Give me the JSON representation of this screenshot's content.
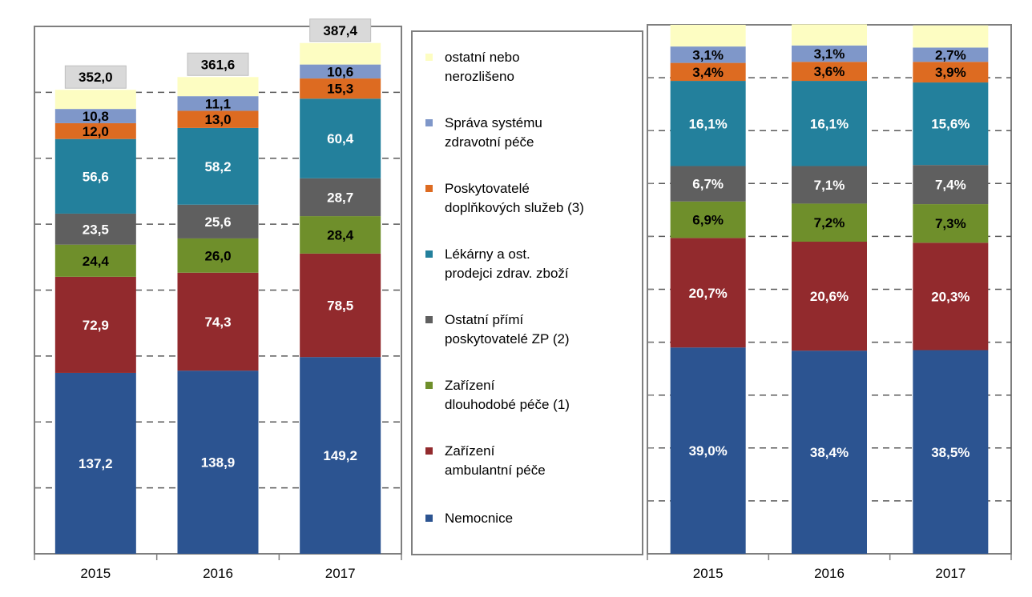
{
  "chart_data": [
    {
      "type": "bar",
      "stacked": true,
      "categories": [
        "2015",
        "2016",
        "2017"
      ],
      "ylim": [
        0,
        400
      ],
      "grid": true,
      "totals": [
        "352,0",
        "361,6",
        "387,4"
      ],
      "series": [
        {
          "name": "Nemocnice",
          "color": "#2c5491",
          "values": [
            137.2,
            138.9,
            149.2
          ],
          "labels": [
            "137,2",
            "138,9",
            "149,2"
          ],
          "label_color": "#ffffff"
        },
        {
          "name": "Zařízení ambulantní péče",
          "color": "#922a2d",
          "values": [
            72.9,
            74.3,
            78.5
          ],
          "labels": [
            "72,9",
            "74,3",
            "78,5"
          ],
          "label_color": "#ffffff"
        },
        {
          "name": "Zařízení dlouhodobé péče (1)",
          "color": "#6f8f2b",
          "values": [
            24.4,
            26.0,
            28.4
          ],
          "labels": [
            "24,4",
            "26,0",
            "28,4"
          ],
          "label_color": "#000000"
        },
        {
          "name": "Ostatní přímí poskytovatelé ZP (2)",
          "color": "#5f5f5f",
          "values": [
            23.5,
            25.6,
            28.7
          ],
          "labels": [
            "23,5",
            "25,6",
            "28,7"
          ],
          "label_color": "#ffffff"
        },
        {
          "name": "Lékárny a ost. prodejci zdrav. zboží",
          "color": "#23809c",
          "values": [
            56.6,
            58.2,
            60.4
          ],
          "labels": [
            "56,6",
            "58,2",
            "60,4"
          ],
          "label_color": "#ffffff"
        },
        {
          "name": "Poskytovatelé doplňkových služeb (3)",
          "color": "#dd6b21",
          "values": [
            12.0,
            13.0,
            15.3
          ],
          "labels": [
            "12,0",
            "13,0",
            "15,3"
          ],
          "label_color": "#000000"
        },
        {
          "name": "Správa systému zdravotní péče",
          "color": "#7f97c9",
          "values": [
            10.8,
            11.1,
            10.6
          ],
          "labels": [
            "10,8",
            "11,1",
            "10,6"
          ],
          "label_color": "#000000"
        },
        {
          "name": "ostatní nebo nerozlišeno",
          "color": "#fdfdc2",
          "values": [
            14.5,
            14.5,
            16.3
          ],
          "labels": [
            "",
            "",
            ""
          ],
          "label_color": "#000000"
        }
      ]
    },
    {
      "type": "bar",
      "stacked": true,
      "percent": true,
      "categories": [
        "2015",
        "2016",
        "2017"
      ],
      "ylim": [
        0,
        100
      ],
      "grid": true,
      "series": [
        {
          "name": "Nemocnice",
          "color": "#2c5491",
          "values": [
            39.0,
            38.4,
            38.5
          ],
          "labels": [
            "39,0%",
            "38,4%",
            "38,5%"
          ],
          "label_color": "#ffffff"
        },
        {
          "name": "Zařízení ambulantní péče",
          "color": "#922a2d",
          "values": [
            20.7,
            20.6,
            20.3
          ],
          "labels": [
            "20,7%",
            "20,6%",
            "20,3%"
          ],
          "label_color": "#ffffff"
        },
        {
          "name": "Zařízení dlouhodobé péče (1)",
          "color": "#6f8f2b",
          "values": [
            6.9,
            7.2,
            7.3
          ],
          "labels": [
            "6,9%",
            "7,2%",
            "7,3%"
          ],
          "label_color": "#000000"
        },
        {
          "name": "Ostatní přímí poskytovatelé ZP (2)",
          "color": "#5f5f5f",
          "values": [
            6.7,
            7.1,
            7.4
          ],
          "labels": [
            "6,7%",
            "7,1%",
            "7,4%"
          ],
          "label_color": "#ffffff"
        },
        {
          "name": "Lékárny a ost. prodejci zdrav. zboží",
          "color": "#23809c",
          "values": [
            16.1,
            16.1,
            15.6
          ],
          "labels": [
            "16,1%",
            "16,1%",
            "15,6%"
          ],
          "label_color": "#ffffff"
        },
        {
          "name": "Poskytovatelé doplňkových služeb (3)",
          "color": "#dd6b21",
          "values": [
            3.4,
            3.6,
            3.9
          ],
          "labels": [
            "3,4%",
            "3,6%",
            "3,9%"
          ],
          "label_color": "#000000"
        },
        {
          "name": "Správa systému zdravotní péče",
          "color": "#7f97c9",
          "values": [
            3.1,
            3.1,
            2.7
          ],
          "labels": [
            "3,1%",
            "3,1%",
            "2,7%"
          ],
          "label_color": "#000000"
        },
        {
          "name": "ostatní nebo nerozlišeno",
          "color": "#fdfdc2",
          "values": [
            4.1,
            4.0,
            4.2
          ],
          "labels": [
            "",
            "",
            ""
          ],
          "label_color": "#000000"
        }
      ]
    }
  ],
  "legend": {
    "items": [
      {
        "label_line1": "ostatní nebo",
        "label_line2": "nerozlišeno",
        "color": "#fdfdc2"
      },
      {
        "label_line1": "Správa systému",
        "label_line2": "zdravotní péče",
        "color": "#7f97c9"
      },
      {
        "label_line1": "Poskytovatelé",
        "label_line2": "doplňkových služeb (3)",
        "color": "#dd6b21"
      },
      {
        "label_line1": "Lékárny a ost.",
        "label_line2": "prodejci zdrav. zboží",
        "color": "#23809c"
      },
      {
        "label_line1": "Ostatní přímí",
        "label_line2": "poskytovatelé ZP (2)",
        "color": "#5f5f5f"
      },
      {
        "label_line1": "Zařízení",
        "label_line2": "dlouhodobé péče (1)",
        "color": "#6f8f2b"
      },
      {
        "label_line1": "Zařízení",
        "label_line2": "ambulantní péče",
        "color": "#922a2d"
      },
      {
        "label_line1": "Nemocnice",
        "label_line2": "",
        "color": "#2c5491"
      }
    ]
  }
}
